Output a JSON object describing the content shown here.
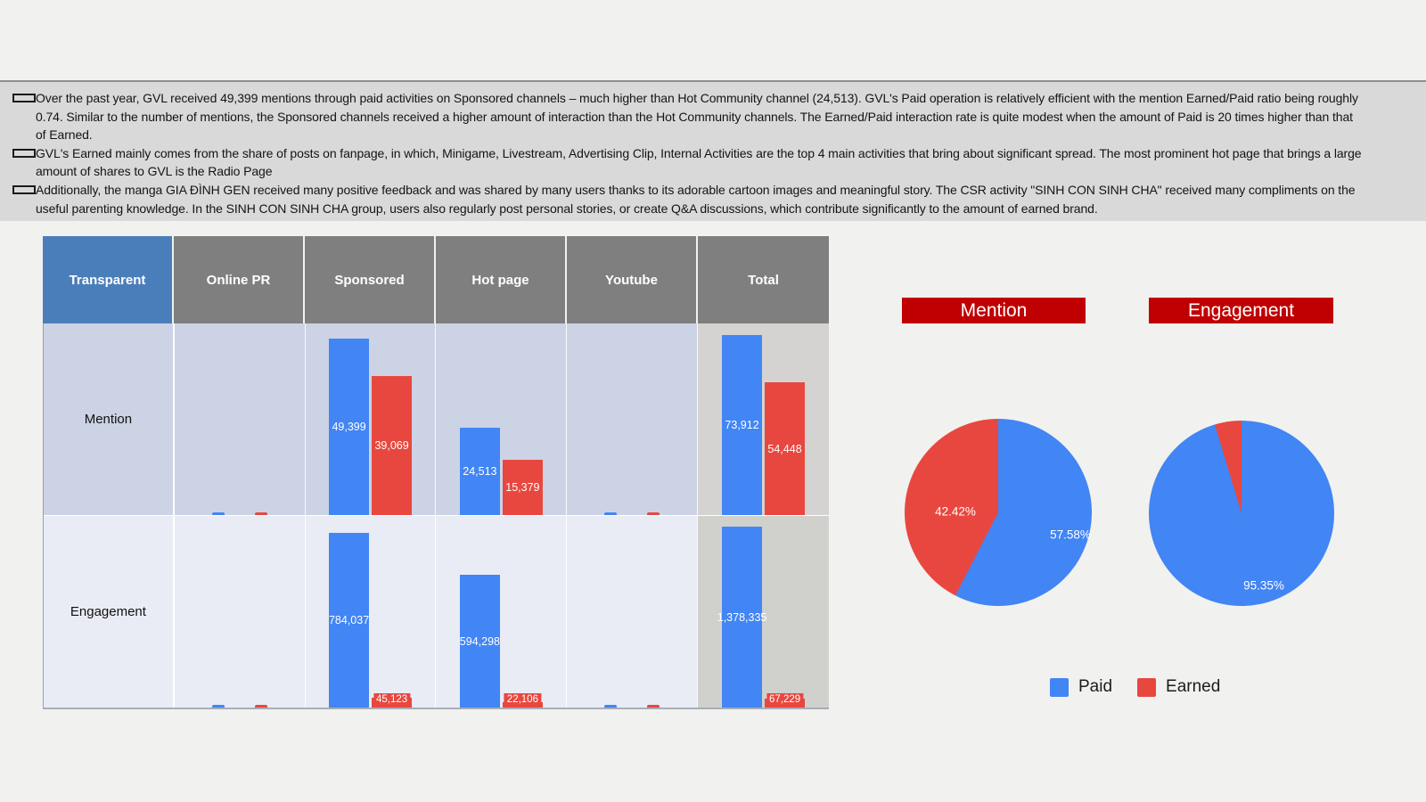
{
  "colors": {
    "paid": "#4285f4",
    "earned": "#e8473f",
    "title_bg": "#c00000",
    "header_gray": "#7f7f7f",
    "header_blue": "#4a7ebb"
  },
  "summary": {
    "bullets": [
      {
        "text": "Over the past year, GVL received 49,399 mentions through paid activities on Sponsored channels – much higher than Hot Community channel (24,513). GVL's Paid operation is relatively efficient with the mention Earned/Paid ratio being roughly 0.74. Similar to the number of mentions, the Sponsored channels received a higher amount of interaction than the Hot Community channels. The Earned/Paid interaction rate is quite modest when the amount of Paid is 20 times higher than that of Earned."
      },
      {
        "text": "GVL's Earned mainly comes from the share of posts on fanpage, in which, Minigame, Livestream, Advertising Clip, Internal Activities are the top 4 main activities that bring about significant spread. The most prominent hot page that brings a large amount of shares to GVL is the Radio Page"
      },
      {
        "text": "Additionally, the manga GIA ĐÌNH GEN received many positive feedback and was shared by many users thanks to its adorable cartoon images and meaningful story. The CSR activity \"SINH CON SINH CHA\" received many compliments on the useful parenting knowledge. In the SINH CON SINH CHA group, users also regularly post personal stories, or create Q&A discussions, which contribute significantly to the amount of earned brand."
      }
    ]
  },
  "table": {
    "header": [
      "Transparent",
      "Online PR",
      "Sponsored",
      "Hot page",
      "Youtube",
      "Total"
    ],
    "rows": [
      {
        "label": "Mention",
        "cells": [
          {
            "column": "Online PR",
            "paid": null,
            "earned": null,
            "paid_label": "",
            "earned_label": "",
            "axis_max": 50000,
            "total": false
          },
          {
            "column": "Sponsored",
            "paid": 49399,
            "earned": 39069,
            "paid_label": "49,399",
            "earned_label": "39,069",
            "axis_max": 50000,
            "total": false
          },
          {
            "column": "Hot page",
            "paid": 24513,
            "earned": 15379,
            "paid_label": "24,513",
            "earned_label": "15,379",
            "axis_max": 50000,
            "total": false
          },
          {
            "column": "Youtube",
            "paid": null,
            "earned": null,
            "paid_label": "",
            "earned_label": "",
            "axis_max": 50000,
            "total": false
          },
          {
            "column": "Total",
            "paid": 73912,
            "earned": 54448,
            "paid_label": "73,912",
            "earned_label": "54,448",
            "axis_max": 73000,
            "total": true
          }
        ]
      },
      {
        "label": "Engagement",
        "cells": [
          {
            "column": "Online PR",
            "paid": null,
            "earned": null,
            "paid_label": "",
            "earned_label": "",
            "axis_max": 800000,
            "total": false
          },
          {
            "column": "Sponsored",
            "paid": 784037,
            "earned": 45123,
            "paid_label": "784,037",
            "earned_label": "45,123",
            "axis_max": 800000,
            "total": false
          },
          {
            "column": "Hot page",
            "paid": 594298,
            "earned": 22106,
            "paid_label": "594,298",
            "earned_label": "22,106",
            "axis_max": 800000,
            "total": false
          },
          {
            "column": "Youtube",
            "paid": null,
            "earned": null,
            "paid_label": "",
            "earned_label": "",
            "axis_max": 800000,
            "total": false
          },
          {
            "column": "Total",
            "paid": 1378335,
            "earned": 67229,
            "paid_label": "1,378,335",
            "earned_label": "67,229",
            "axis_max": 1360000,
            "total": true
          }
        ]
      }
    ]
  },
  "pies": [
    {
      "title": "Mention",
      "slices": [
        {
          "name": "Paid",
          "pct": 57.58,
          "label": "57.58%"
        },
        {
          "name": "Earned",
          "pct": 42.42,
          "label": "42.42%"
        }
      ]
    },
    {
      "title": "Engagement",
      "slices": [
        {
          "name": "Paid",
          "pct": 95.35,
          "label": "95.35%"
        },
        {
          "name": "Earned",
          "pct": 4.65,
          "label": ""
        }
      ]
    }
  ],
  "legend": [
    {
      "name": "Paid"
    },
    {
      "name": "Earned"
    }
  ],
  "chart_data": [
    {
      "type": "bar",
      "title": "Mention by channel",
      "categories": [
        "Online PR",
        "Sponsored",
        "Hot page",
        "Youtube",
        "Total"
      ],
      "series": [
        {
          "name": "Paid",
          "values": [
            null,
            49399,
            24513,
            null,
            73912
          ]
        },
        {
          "name": "Earned",
          "values": [
            null,
            39069,
            15379,
            null,
            54448
          ]
        }
      ],
      "value_labels": [
        "49,399",
        "39,069",
        "24,513",
        "15,379",
        "73,912",
        "54,448"
      ],
      "grid": false,
      "legend_position": "shared-bottom-right"
    },
    {
      "type": "bar",
      "title": "Engagement by channel",
      "categories": [
        "Online PR",
        "Sponsored",
        "Hot page",
        "Youtube",
        "Total"
      ],
      "series": [
        {
          "name": "Paid",
          "values": [
            null,
            784037,
            594298,
            null,
            1378335
          ]
        },
        {
          "name": "Earned",
          "values": [
            null,
            45123,
            22106,
            null,
            67229
          ]
        }
      ],
      "value_labels": [
        "784,037",
        "45,123",
        "594,298",
        "22,106",
        "1,378,335",
        "67,229"
      ],
      "grid": false,
      "legend_position": "shared-bottom-right"
    },
    {
      "type": "pie",
      "title": "Mention",
      "labels": [
        "Paid",
        "Earned"
      ],
      "values": [
        57.58,
        42.42
      ],
      "unit": "%"
    },
    {
      "type": "pie",
      "title": "Engagement",
      "labels": [
        "Paid",
        "Earned"
      ],
      "values": [
        95.35,
        4.65
      ],
      "unit": "%"
    }
  ]
}
